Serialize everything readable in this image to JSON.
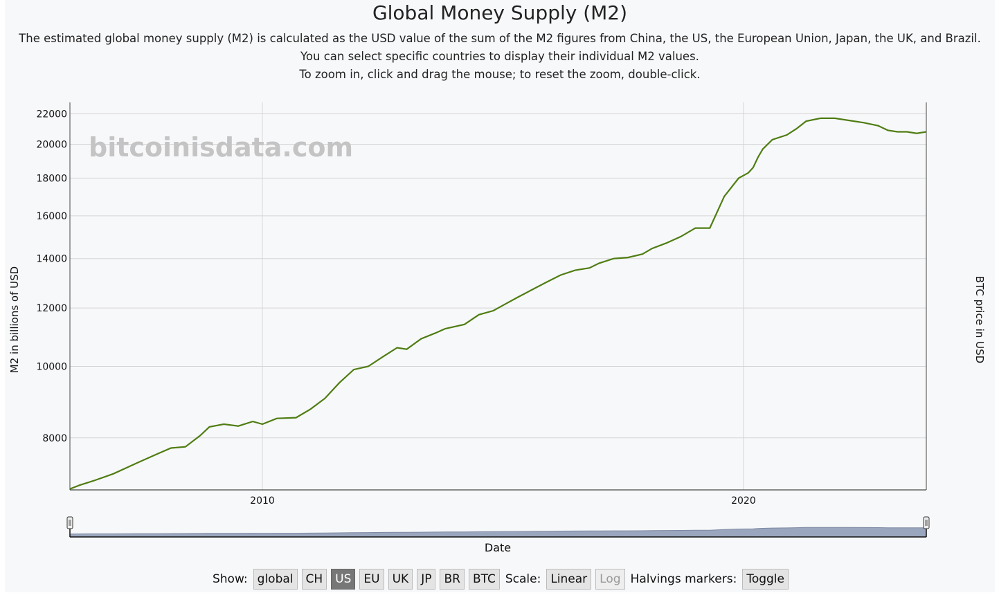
{
  "title": "Global Money Supply (M2)",
  "description": [
    "The estimated global money supply (M2) is calculated as the USD value of the sum of the M2 figures from China, the US, the European Union, Japan, the UK, and Brazil.",
    "You can select specific countries to display their individual M2 values.",
    "To zoom in, click and drag the mouse; to reset the zoom, double-click."
  ],
  "watermark": "bitcoinisdata.com",
  "colors": {
    "line": "#4f7d12",
    "grid": "#d5d5d5",
    "axis": "#444444",
    "range_fill": "#9aa6bd"
  },
  "controls": {
    "show_label": "Show:",
    "countries": [
      "global",
      "CH",
      "US",
      "EU",
      "UK",
      "JP",
      "BR",
      "BTC"
    ],
    "active": "US",
    "scale_label": "Scale:",
    "scale_linear": "Linear",
    "scale_log": "Log",
    "halvings_label": "Halvings markers:",
    "toggle": "Toggle"
  },
  "chart_data": {
    "type": "line",
    "title": "Global Money Supply (M2)",
    "xlabel": "Date",
    "ylabel": "M2 in billions of USD",
    "y2label": "BTC price in USD",
    "yscale": "log",
    "ylim": [
      6800,
      22800
    ],
    "xlim": [
      2006.0,
      2023.8
    ],
    "yticks": [
      8000,
      10000,
      12000,
      14000,
      16000,
      18000,
      20000,
      22000
    ],
    "xticks": [
      2010,
      2020
    ],
    "grid": true,
    "series": [
      {
        "name": "US M2",
        "x": [
          2006.0,
          2006.2,
          2006.5,
          2006.9,
          2007.2,
          2007.4,
          2007.8,
          2008.1,
          2008.4,
          2008.7,
          2008.9,
          2009.2,
          2009.5,
          2009.8,
          2010.0,
          2010.3,
          2010.7,
          2011.0,
          2011.3,
          2011.6,
          2011.9,
          2012.2,
          2012.5,
          2012.8,
          2013.0,
          2013.3,
          2013.6,
          2013.8,
          2014.2,
          2014.5,
          2014.8,
          2015.0,
          2015.3,
          2015.6,
          2015.9,
          2016.2,
          2016.5,
          2016.8,
          2017.0,
          2017.3,
          2017.6,
          2017.9,
          2018.1,
          2018.4,
          2018.7,
          2019.0,
          2019.3,
          2019.6,
          2019.9,
          2020.1,
          2020.2,
          2020.3,
          2020.4,
          2020.6,
          2020.9,
          2021.1,
          2021.3,
          2021.6,
          2021.9,
          2022.0,
          2022.2,
          2022.5,
          2022.8,
          2023.0,
          2023.2,
          2023.4,
          2023.6,
          2023.8
        ],
        "values": [
          6820,
          6900,
          7000,
          7150,
          7300,
          7400,
          7600,
          7750,
          7780,
          8050,
          8280,
          8350,
          8300,
          8420,
          8350,
          8500,
          8520,
          8750,
          9050,
          9500,
          9900,
          10000,
          10300,
          10600,
          10550,
          10900,
          11100,
          11250,
          11400,
          11750,
          11900,
          12100,
          12400,
          12700,
          13000,
          13300,
          13500,
          13600,
          13800,
          14000,
          14050,
          14200,
          14450,
          14700,
          15000,
          15400,
          15400,
          17000,
          18000,
          18300,
          18600,
          19200,
          19700,
          20300,
          20600,
          21000,
          21500,
          21700,
          21700,
          21650,
          21550,
          21400,
          21200,
          20900,
          20800,
          20800,
          20700,
          20800
        ]
      }
    ],
    "range_selector": {
      "label": "Date"
    }
  }
}
